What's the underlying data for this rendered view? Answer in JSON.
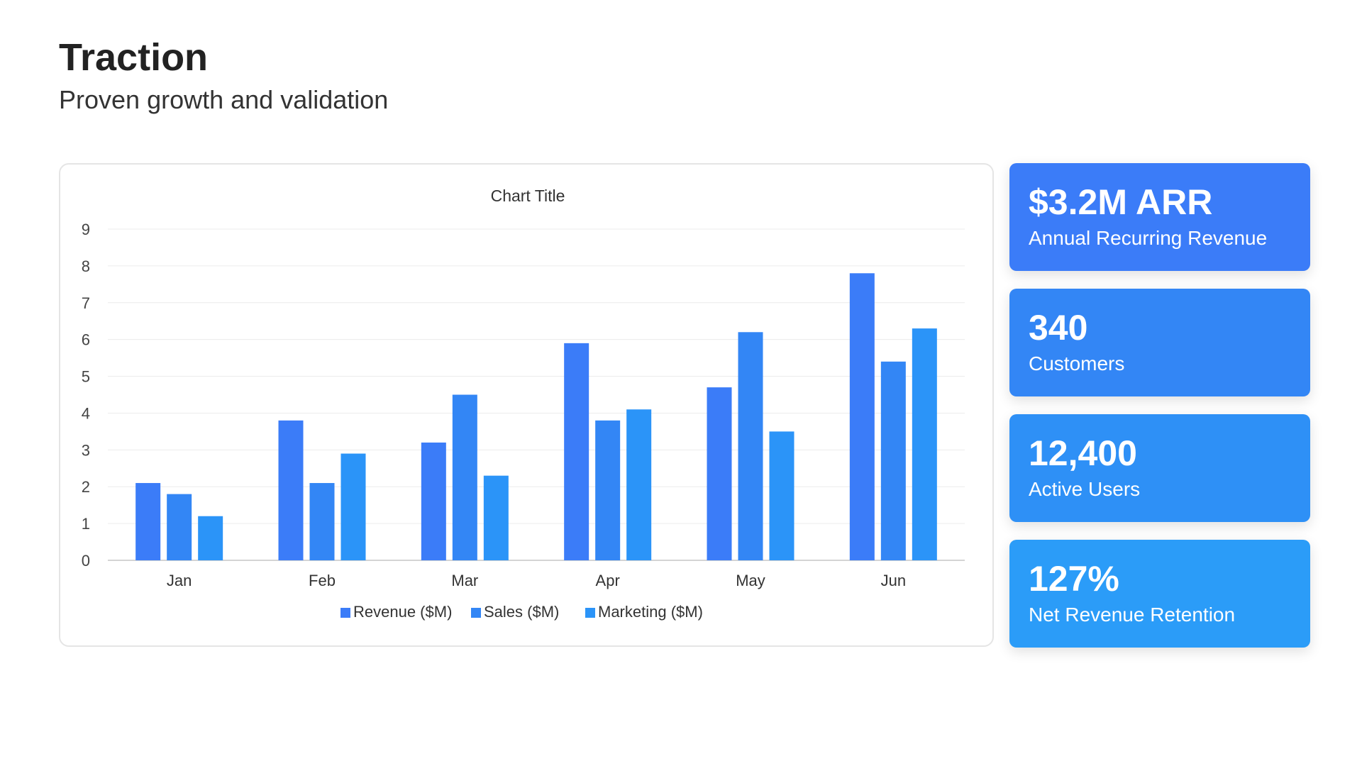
{
  "slide": {
    "title": "Traction",
    "subtitle": "Proven growth and validation"
  },
  "chart_data": {
    "type": "bar",
    "title": "Chart Title",
    "categories": [
      "Jan",
      "Feb",
      "Mar",
      "Apr",
      "May",
      "Jun"
    ],
    "series": [
      {
        "name": "Revenue ($M)",
        "color": "#3B7CF8",
        "values": [
          2.1,
          3.8,
          3.2,
          5.9,
          4.7,
          7.8
        ]
      },
      {
        "name": "Sales ($M)",
        "color": "#3386F5",
        "values": [
          1.8,
          2.1,
          4.5,
          3.8,
          6.2,
          5.4
        ]
      },
      {
        "name": "Marketing ($M)",
        "color": "#2B94F8",
        "values": [
          1.2,
          2.9,
          2.3,
          4.1,
          3.5,
          6.3
        ]
      }
    ],
    "ylim": [
      0,
      9
    ],
    "yticks": [
      0,
      1,
      2,
      3,
      4,
      5,
      6,
      7,
      8,
      9
    ],
    "grid": true,
    "legend": "bottom"
  },
  "metrics": [
    {
      "value": "$3.2M ARR",
      "label": "Annual Recurring Revenue",
      "color": "#3B7CF8"
    },
    {
      "value": "340",
      "label": "Customers",
      "color": "#3386F5"
    },
    {
      "value": "12,400",
      "label": "Active Users",
      "color": "#2E90F6"
    },
    {
      "value": "127%",
      "label": "Net Revenue Retention",
      "color": "#2B9CF8"
    }
  ]
}
